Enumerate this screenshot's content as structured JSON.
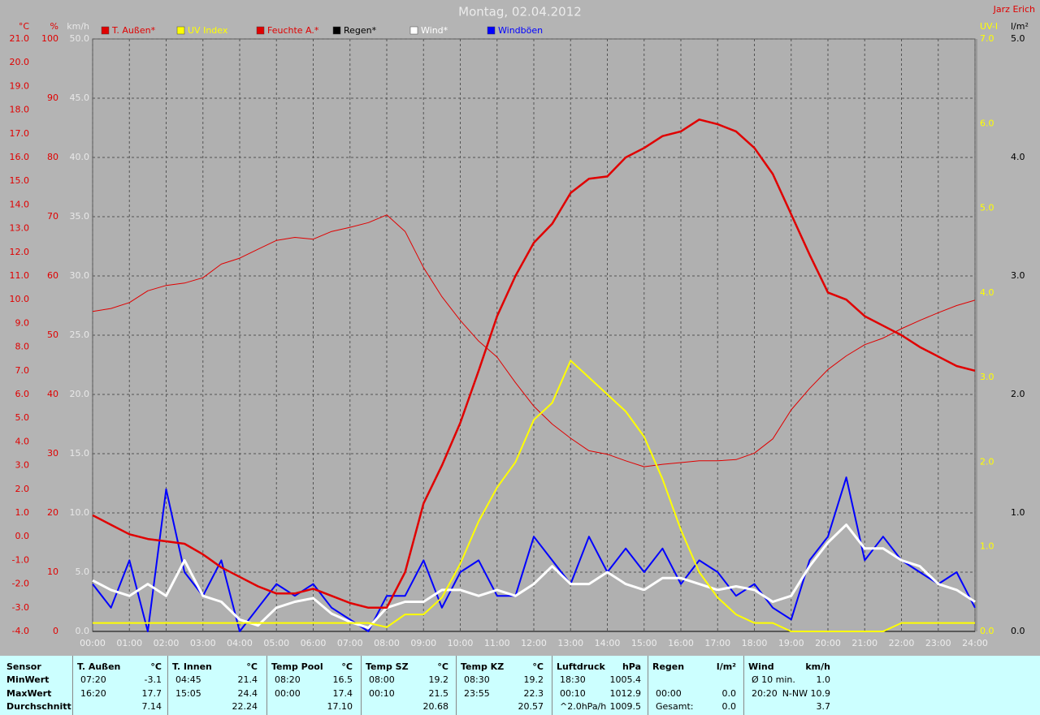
{
  "chart_data": {
    "type": "line",
    "title": "Montag, 02.04.2012",
    "author": "Jarz Erich",
    "x": [
      0,
      0.5,
      1,
      1.5,
      2,
      2.5,
      3,
      3.5,
      4,
      4.5,
      5,
      5.5,
      6,
      6.5,
      7,
      7.5,
      8,
      8.5,
      9,
      9.5,
      10,
      10.5,
      11,
      11.5,
      12,
      12.5,
      13,
      13.5,
      14,
      14.5,
      15,
      15.5,
      16,
      16.5,
      17,
      17.5,
      18,
      18.5,
      19,
      19.5,
      20,
      20.5,
      21,
      21.5,
      22,
      22.5,
      23,
      23.5,
      24
    ],
    "xlim": [
      0,
      24
    ],
    "xticks": [
      {
        "value": 0,
        "label": "00:00"
      },
      {
        "value": 1,
        "label": "01:00"
      },
      {
        "value": 2,
        "label": "02:00"
      },
      {
        "value": 3,
        "label": "03:00"
      },
      {
        "value": 4,
        "label": "04:00"
      },
      {
        "value": 5,
        "label": "05:00"
      },
      {
        "value": 6,
        "label": "06:00"
      },
      {
        "value": 7,
        "label": "07:00"
      },
      {
        "value": 8,
        "label": "08:00"
      },
      {
        "value": 9,
        "label": "09:00"
      },
      {
        "value": 10,
        "label": "10:00"
      },
      {
        "value": 11,
        "label": "11:00"
      },
      {
        "value": 12,
        "label": "12:00"
      },
      {
        "value": 13,
        "label": "13:00"
      },
      {
        "value": 14,
        "label": "14:00"
      },
      {
        "value": 15,
        "label": "15:00"
      },
      {
        "value": 16,
        "label": "16:00"
      },
      {
        "value": 17,
        "label": "17:00"
      },
      {
        "value": 18,
        "label": "18:00"
      },
      {
        "value": 19,
        "label": "19:00"
      },
      {
        "value": 20,
        "label": "20:00"
      },
      {
        "value": 21,
        "label": "21:00"
      },
      {
        "value": 22,
        "label": "22:00"
      },
      {
        "value": 23,
        "label": "23:00"
      },
      {
        "value": 24,
        "label": "24:00"
      }
    ],
    "grid": true,
    "axes": {
      "temp": {
        "label": "°C",
        "color": "#e00000",
        "lim": [
          -4,
          21
        ],
        "ticks": [
          {
            "value": -4,
            "label": "-4.0"
          },
          {
            "value": -3,
            "label": "-3.0"
          },
          {
            "value": -2,
            "label": "-2.0"
          },
          {
            "value": -1,
            "label": "-1.0"
          },
          {
            "value": 0,
            "label": "0.0"
          },
          {
            "value": 1,
            "label": "1.0"
          },
          {
            "value": 2,
            "label": "2.0"
          },
          {
            "value": 3,
            "label": "3.0"
          },
          {
            "value": 4,
            "label": "4.0"
          },
          {
            "value": 5,
            "label": "5.0"
          },
          {
            "value": 6,
            "label": "6.0"
          },
          {
            "value": 7,
            "label": "7.0"
          },
          {
            "value": 8,
            "label": "8.0"
          },
          {
            "value": 9,
            "label": "9.0"
          },
          {
            "value": 10,
            "label": "10.0"
          },
          {
            "value": 11,
            "label": "11.0"
          },
          {
            "value": 12,
            "label": "12.0"
          },
          {
            "value": 13,
            "label": "13.0"
          },
          {
            "value": 14,
            "label": "14.0"
          },
          {
            "value": 15,
            "label": "15.0"
          },
          {
            "value": 16,
            "label": "16.0"
          },
          {
            "value": 17,
            "label": "17.0"
          },
          {
            "value": 18,
            "label": "18.0"
          },
          {
            "value": 19,
            "label": "19.0"
          },
          {
            "value": 20,
            "label": "20.0"
          },
          {
            "value": 21,
            "label": "21.0"
          }
        ]
      },
      "hum": {
        "label": "%",
        "color": "#e00000",
        "lim": [
          0,
          100
        ],
        "ticks": [
          0,
          10,
          20,
          30,
          40,
          50,
          60,
          70,
          80,
          90,
          100
        ]
      },
      "wind": {
        "label": "km/h",
        "color": "#e8e8e8",
        "lim": [
          0,
          50
        ],
        "ticks": [
          {
            "value": 0,
            "label": "0.0"
          },
          {
            "value": 5,
            "label": "5.0"
          },
          {
            "value": 10,
            "label": "10.0"
          },
          {
            "value": 15,
            "label": "15.0"
          },
          {
            "value": 20,
            "label": "20.0"
          },
          {
            "value": 25,
            "label": "25.0"
          },
          {
            "value": 30,
            "label": "30.0"
          },
          {
            "value": 35,
            "label": "35.0"
          },
          {
            "value": 40,
            "label": "40.0"
          },
          {
            "value": 45,
            "label": "45.0"
          },
          {
            "value": 50,
            "label": "50.0"
          }
        ]
      },
      "uv": {
        "label": "UV-I",
        "color": "#ffff00",
        "lim": [
          0,
          7
        ],
        "ticks": [
          {
            "value": 0,
            "label": "0.0"
          },
          {
            "value": 1,
            "label": "1.0"
          },
          {
            "value": 2,
            "label": "2.0"
          },
          {
            "value": 3,
            "label": "3.0"
          },
          {
            "value": 4,
            "label": "4.0"
          },
          {
            "value": 5,
            "label": "5.0"
          },
          {
            "value": 6,
            "label": "6.0"
          },
          {
            "value": 7,
            "label": "7.0"
          }
        ]
      },
      "rain": {
        "label": "l/m²",
        "color": "#000000",
        "lim": [
          0,
          5
        ],
        "ticks": [
          {
            "value": 0,
            "label": "0.0"
          },
          {
            "value": 1,
            "label": "1.0"
          },
          {
            "value": 2,
            "label": "2.0"
          },
          {
            "value": 3,
            "label": "3.0"
          },
          {
            "value": 4,
            "label": "4.0"
          },
          {
            "value": 5,
            "label": "5.0"
          }
        ]
      }
    },
    "series": [
      {
        "name": "T. Außen*",
        "color": "#e00000",
        "axis": "temp",
        "width": 2.5,
        "values": [
          0.9,
          0.5,
          0.1,
          -0.1,
          -0.2,
          -0.3,
          -0.75,
          -1.3,
          -1.7,
          -2.1,
          -2.4,
          -2.4,
          -2.2,
          -2.5,
          -2.8,
          -3.0,
          -3.0,
          -1.5,
          1.4,
          3.0,
          4.8,
          7.0,
          9.3,
          11.0,
          12.4,
          13.2,
          14.5,
          15.1,
          15.2,
          16.0,
          16.4,
          16.9,
          17.1,
          17.6,
          17.4,
          17.1,
          16.4,
          15.3,
          13.6,
          11.9,
          10.3,
          10.0,
          9.3,
          8.9,
          8.5,
          8.0,
          7.6,
          7.2,
          7.0
        ]
      },
      {
        "name": "UV Index",
        "color": "#ffff00",
        "axis": "uv",
        "width": 2,
        "values": [
          0.1,
          0.1,
          0.1,
          0.1,
          0.1,
          0.1,
          0.1,
          0.1,
          0.1,
          0.1,
          0.1,
          0.1,
          0.1,
          0.1,
          0.1,
          0.1,
          0.05,
          0.2,
          0.2,
          0.4,
          0.8,
          1.3,
          1.7,
          2.0,
          2.5,
          2.7,
          3.2,
          3.0,
          2.8,
          2.6,
          2.3,
          1.8,
          1.2,
          0.7,
          0.4,
          0.2,
          0.1,
          0.1,
          0,
          0,
          0,
          0,
          0,
          0,
          0.1,
          0.1,
          0.1,
          0.1,
          0.1
        ]
      },
      {
        "name": "Feuchte A.*",
        "color": "#e00000",
        "axis": "hum",
        "width": 1,
        "values": [
          54,
          54.5,
          55.5,
          57.5,
          58.4,
          58.8,
          59.7,
          62,
          63,
          64.5,
          66,
          66.5,
          66.2,
          67.5,
          68.2,
          69,
          70.3,
          67.5,
          61.4,
          56.5,
          52.5,
          49,
          46.3,
          42,
          38,
          35,
          32.6,
          30.5,
          29.9,
          28.8,
          27.8,
          28.2,
          28.5,
          28.8,
          28.8,
          29,
          30.1,
          32.5,
          37.4,
          41,
          44.2,
          46.5,
          48.4,
          49.5,
          51.1,
          52.5,
          53.8,
          55,
          55.9
        ]
      },
      {
        "name": "Regen*",
        "color": "#000000",
        "axis": "rain",
        "width": 1,
        "values": [
          0,
          0,
          0,
          0,
          0,
          0,
          0,
          0,
          0,
          0,
          0,
          0,
          0,
          0,
          0,
          0,
          0,
          0,
          0,
          0,
          0,
          0,
          0,
          0,
          0,
          0,
          0,
          0,
          0,
          0,
          0,
          0,
          0,
          0,
          0,
          0,
          0,
          0,
          0,
          0,
          0,
          0,
          0,
          0,
          0,
          0,
          0,
          0,
          0
        ]
      },
      {
        "name": "Wind*",
        "color": "#ffffff",
        "axis": "wind",
        "width": 3,
        "values": [
          4.3,
          3.5,
          3.0,
          4.0,
          3.0,
          6.0,
          3.0,
          2.5,
          1.0,
          0.5,
          2.0,
          2.5,
          2.8,
          1.5,
          0.8,
          0.3,
          2.0,
          2.5,
          2.5,
          3.5,
          3.5,
          3.0,
          3.5,
          3.0,
          4.0,
          5.5,
          4.0,
          4.0,
          5.0,
          4.0,
          3.5,
          4.5,
          4.5,
          4.0,
          3.5,
          3.8,
          3.5,
          2.5,
          3.0,
          5.5,
          7.5,
          9.0,
          7.0,
          7.0,
          6.0,
          5.5,
          4.0,
          3.5,
          2.5
        ]
      },
      {
        "name": "Windböen",
        "color": "#0000ff",
        "axis": "wind",
        "width": 2,
        "values": [
          4,
          2,
          6,
          0,
          12,
          5,
          3,
          6,
          0,
          2,
          4,
          3,
          4,
          2,
          1,
          0,
          3,
          3,
          6,
          2,
          5,
          6,
          3,
          3,
          8,
          6,
          4,
          8,
          5,
          7,
          5,
          7,
          4,
          6,
          5,
          3,
          4,
          2,
          1,
          6,
          8,
          13,
          6,
          8,
          6,
          5,
          4,
          5,
          2
        ]
      }
    ]
  },
  "stats": {
    "row_labels": [
      "Sensor",
      "MinWert",
      "MaxWert",
      "Durchschnitt"
    ],
    "blocks": [
      {
        "name": "T. Außen",
        "unit": "°C",
        "rows": [
          [
            "07:20",
            "-3.1"
          ],
          [
            "16:20",
            "17.7"
          ],
          [
            "7.14"
          ]
        ]
      },
      {
        "name": "T. Innen",
        "unit": "°C",
        "rows": [
          [
            "04:45",
            "21.4"
          ],
          [
            "15:05",
            "24.4"
          ],
          [
            "22.24"
          ]
        ]
      },
      {
        "name": "Temp Pool",
        "unit": "°C",
        "rows": [
          [
            "08:20",
            "16.5"
          ],
          [
            "00:00",
            "17.4"
          ],
          [
            "17.10"
          ]
        ]
      },
      {
        "name": "Temp SZ",
        "unit": "°C",
        "rows": [
          [
            "08:00",
            "19.2"
          ],
          [
            "00:10",
            "21.5"
          ],
          [
            "20.68"
          ]
        ]
      },
      {
        "name": "Temp KZ",
        "unit": "°C",
        "rows": [
          [
            "08:30",
            "19.2"
          ],
          [
            "23:55",
            "22.3"
          ],
          [
            "20.57"
          ]
        ]
      },
      {
        "name": "Luftdruck",
        "unit": "hPa",
        "rows": [
          [
            "18:30",
            "1005.4"
          ],
          [
            "00:10",
            "1012.9"
          ],
          [
            "^2.0hPa/h",
            "1009.5"
          ]
        ]
      },
      {
        "name": "Regen",
        "unit": "l/m²",
        "rows": [
          [],
          [
            "00:00",
            "0.0"
          ],
          [
            "Gesamt:",
            "0.0"
          ]
        ]
      },
      {
        "name": "Wind",
        "unit": "km/h",
        "rows": [
          [
            "Ø 10 min.",
            "1.0"
          ],
          [
            "20:20",
            "N-NW 10.9"
          ],
          [
            "3.7"
          ]
        ]
      }
    ]
  }
}
